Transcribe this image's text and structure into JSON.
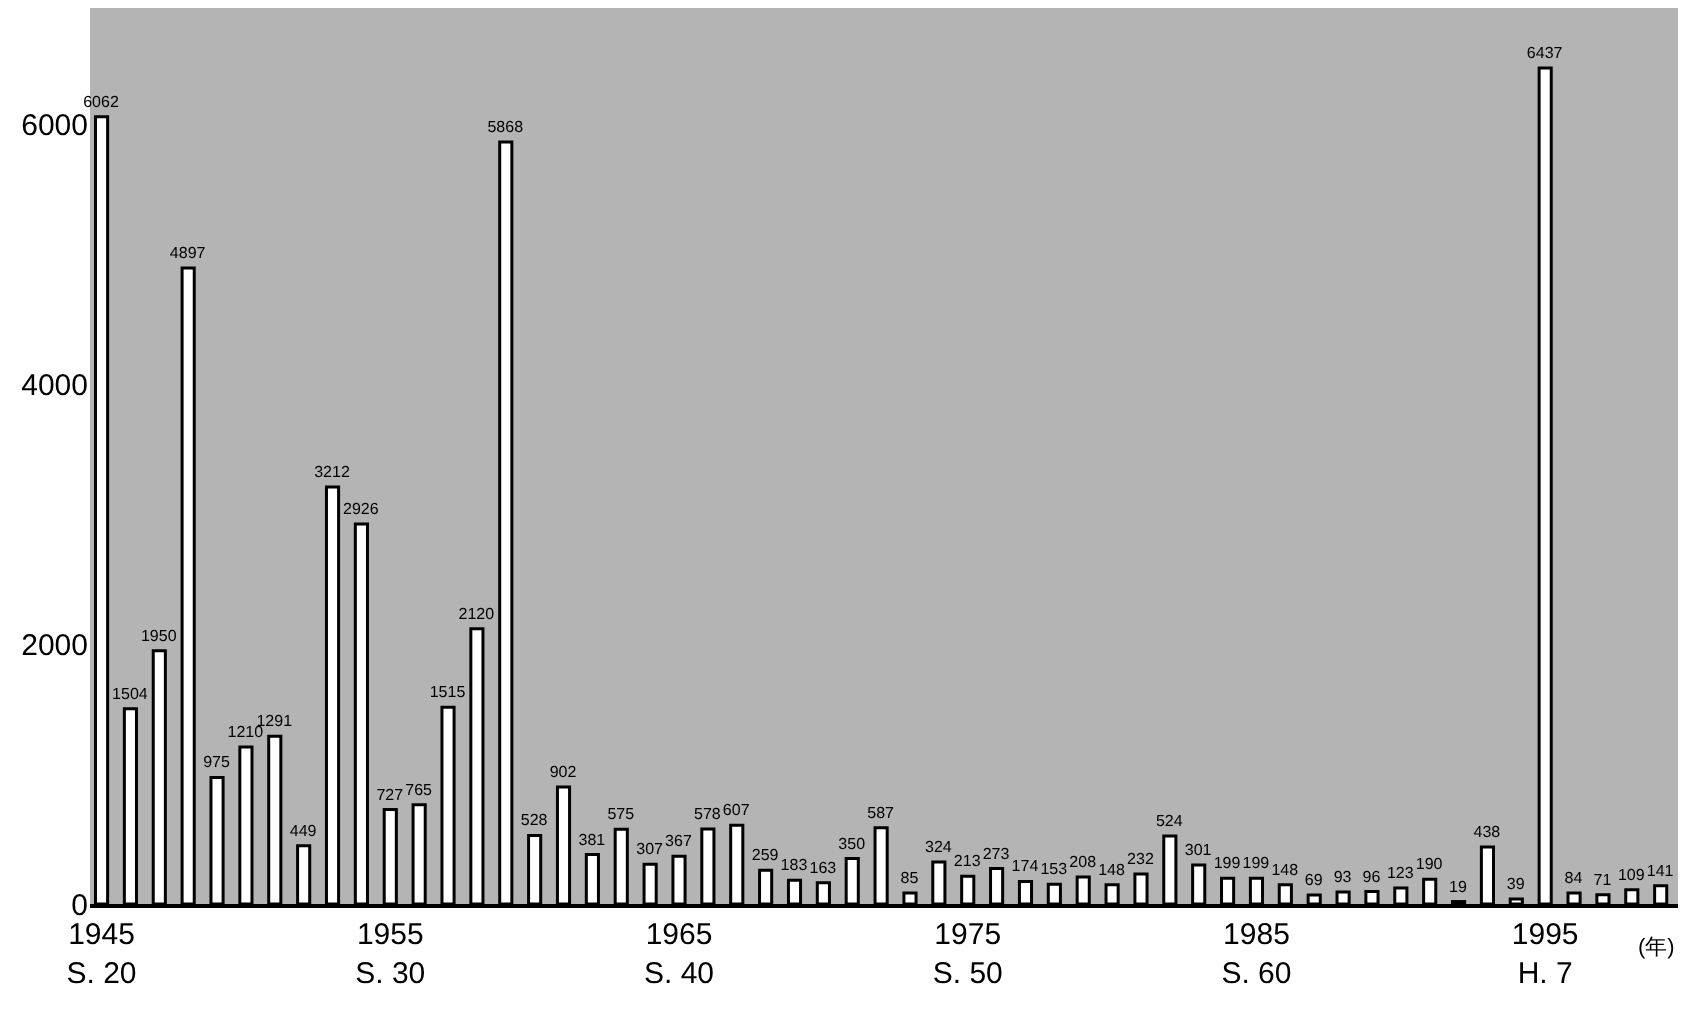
{
  "chart_data": {
    "type": "bar",
    "xlabel": "(年)",
    "categories": [
      "1945\nS. 20",
      null,
      null,
      null,
      null,
      null,
      null,
      null,
      null,
      null,
      "1955\nS. 30",
      null,
      null,
      null,
      null,
      null,
      null,
      null,
      null,
      null,
      "1965\nS. 40",
      null,
      null,
      null,
      null,
      null,
      null,
      null,
      null,
      null,
      "1975\nS. 50",
      null,
      null,
      null,
      null,
      null,
      null,
      null,
      null,
      null,
      "1985\nS. 60",
      null,
      null,
      null,
      null,
      null,
      null,
      null,
      null,
      null,
      "1995\nH. 7",
      null,
      null,
      null,
      null
    ],
    "values": [
      6062,
      1504,
      1950,
      4897,
      975,
      1210,
      1291,
      449,
      3212,
      2926,
      727,
      765,
      1515,
      2120,
      5868,
      528,
      902,
      381,
      575,
      307,
      367,
      578,
      607,
      259,
      183,
      163,
      350,
      587,
      85,
      324,
      213,
      273,
      174,
      153,
      208,
      148,
      232,
      524,
      301,
      199,
      199,
      148,
      69,
      93,
      96,
      123,
      190,
      19,
      438,
      39,
      6437,
      84,
      71,
      109,
      141
    ],
    "color": "#ffffff",
    "data_labels": true,
    "grid": false,
    "ylim": [
      0,
      6900
    ],
    "yticks": [
      0,
      2000,
      4000,
      6000
    ]
  }
}
